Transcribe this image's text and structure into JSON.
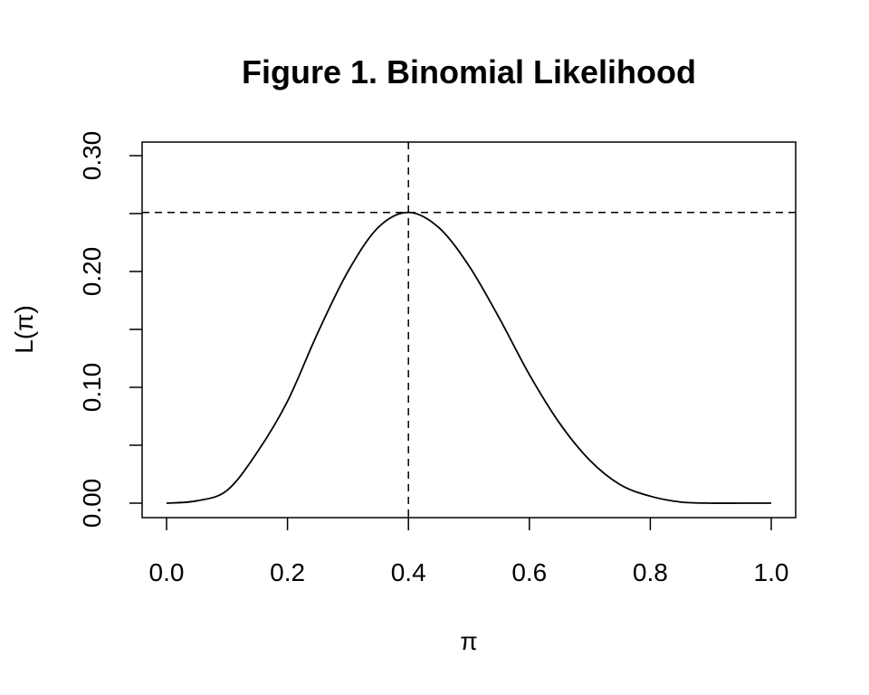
{
  "chart_data": {
    "type": "line",
    "title": "Figure 1. Binomial Likelihood",
    "xlabel": "π",
    "ylabel": "L(π)",
    "xlim": [
      0.0,
      1.0
    ],
    "ylim": [
      0.0,
      0.3
    ],
    "x_ticks": [
      "0.0",
      "0.2",
      "0.4",
      "0.6",
      "0.8",
      "1.0"
    ],
    "y_ticks": [
      "0.00",
      "0.10",
      "0.20",
      "0.30"
    ],
    "grid": false,
    "legend": "none",
    "series": [
      {
        "x": [
          0.0,
          0.05,
          0.1,
          0.15,
          0.2,
          0.25,
          0.3,
          0.35,
          0.4,
          0.45,
          0.5,
          0.55,
          0.6,
          0.65,
          0.7,
          0.75,
          0.8,
          0.85,
          0.9,
          0.95,
          1.0
        ],
        "y": [
          0.0,
          0.002,
          0.011,
          0.044,
          0.088,
          0.147,
          0.2,
          0.238,
          0.251,
          0.238,
          0.205,
          0.16,
          0.111,
          0.069,
          0.037,
          0.016,
          0.006,
          0.001,
          0.0,
          0.0,
          0.0
        ]
      }
    ],
    "reference_lines": [
      {
        "axis": "x",
        "value": 0.4,
        "style": "dashed"
      },
      {
        "axis": "y",
        "value": 0.251,
        "style": "dashed"
      }
    ],
    "colors": {
      "line": "#000000",
      "axes": "#000000",
      "background": "#ffffff"
    }
  }
}
